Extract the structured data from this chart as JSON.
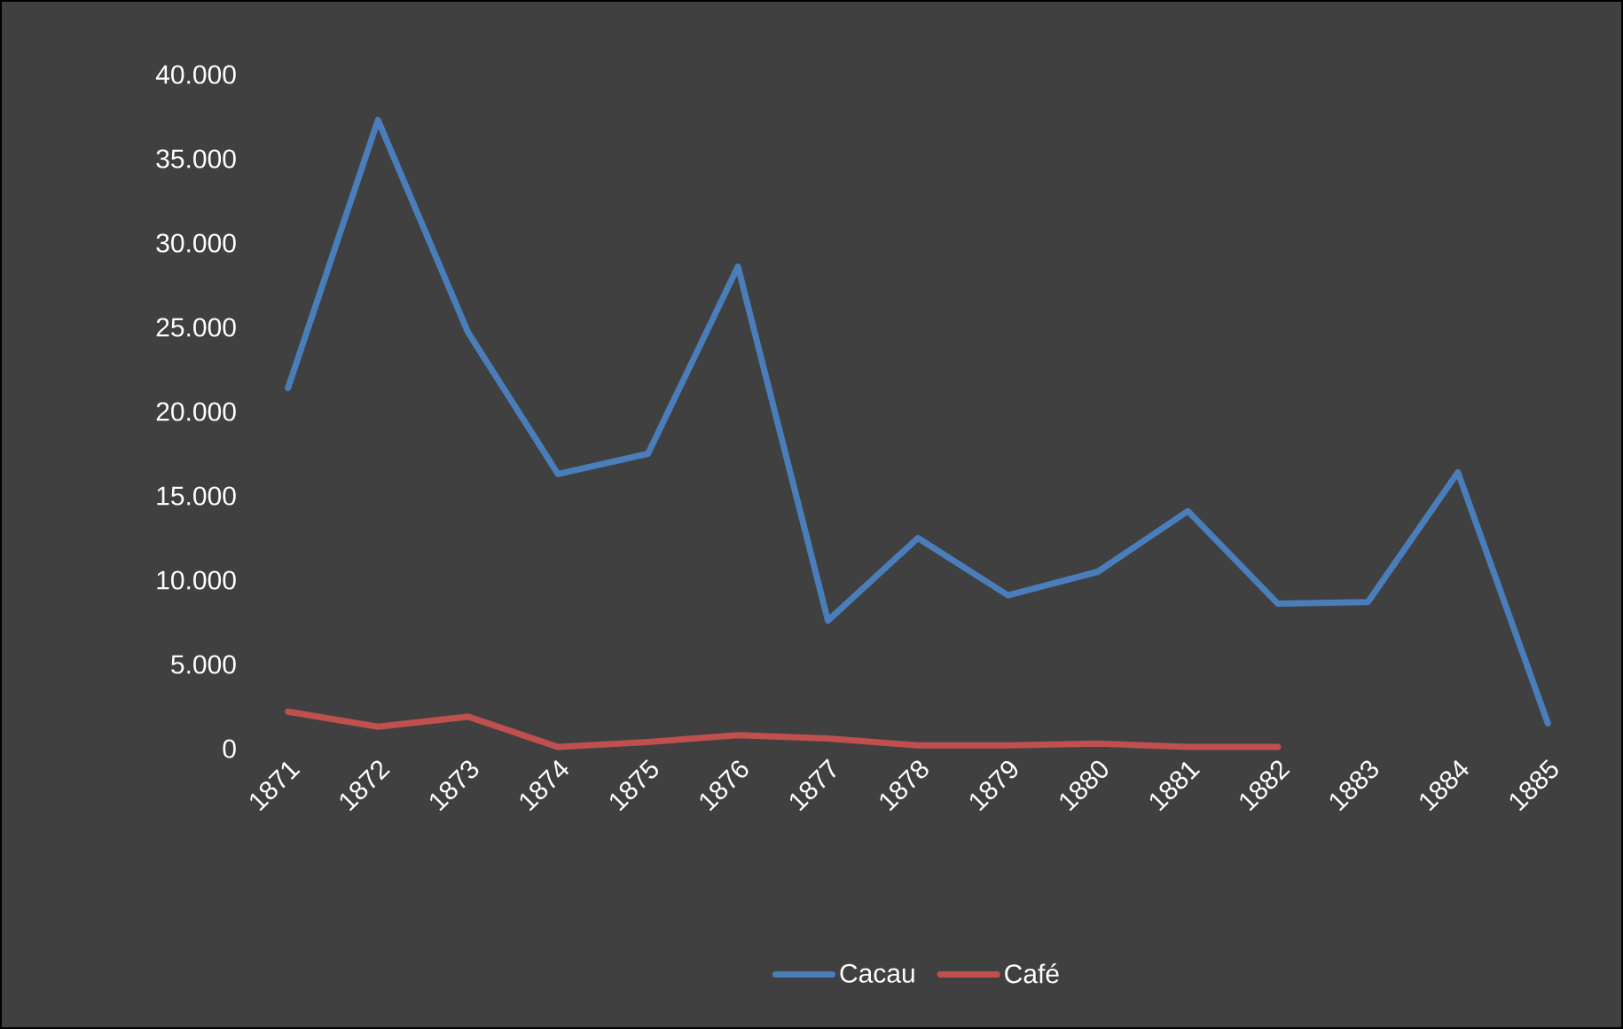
{
  "chart_data": {
    "type": "line",
    "categories": [
      "1871",
      "1872",
      "1873",
      "1874",
      "1875",
      "1876",
      "1877",
      "1878",
      "1879",
      "1880",
      "1881",
      "1882",
      "1883",
      "1884",
      "1885"
    ],
    "series": [
      {
        "name": "Cacau",
        "color": "#4a7ebb",
        "values": [
          21400,
          37300,
          24700,
          16300,
          17500,
          28600,
          7600,
          12500,
          9100,
          10500,
          14100,
          8600,
          8700,
          16400,
          1500
        ]
      },
      {
        "name": "Café",
        "color": "#c0504d",
        "values": [
          2200,
          1300,
          1900,
          100,
          400,
          800,
          600,
          200,
          200,
          300,
          100,
          100,
          null,
          null,
          null
        ]
      }
    ],
    "ylim": [
      0,
      40000
    ],
    "yticks": [
      {
        "value": 0,
        "label": "0"
      },
      {
        "value": 5000,
        "label": "5.000"
      },
      {
        "value": 10000,
        "label": "10.000"
      },
      {
        "value": 15000,
        "label": "15.000"
      },
      {
        "value": 20000,
        "label": "20.000"
      },
      {
        "value": 25000,
        "label": "25.000"
      },
      {
        "value": 30000,
        "label": "30.000"
      },
      {
        "value": 35000,
        "label": "35.000"
      },
      {
        "value": 40000,
        "label": "40.000"
      }
    ],
    "grid": false,
    "legend": "bottom",
    "marker": "none",
    "line_style": "solid"
  }
}
